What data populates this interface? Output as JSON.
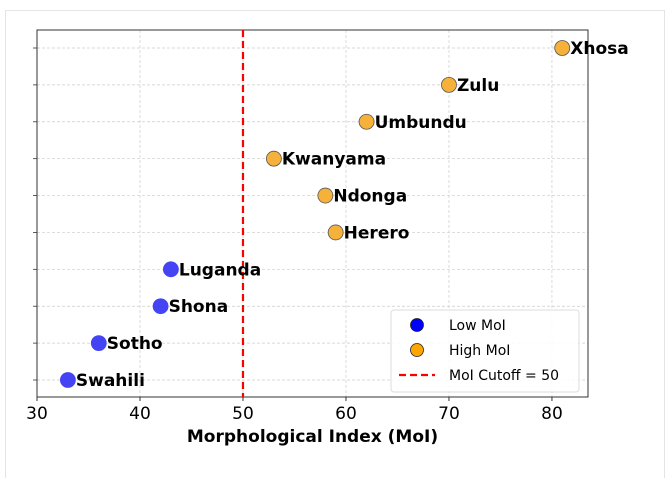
{
  "chart_data": {
    "type": "scatter",
    "title": "",
    "xlabel": "Morphological Index (MoI)",
    "ylabel": "",
    "xlim": [
      30,
      83.5
    ],
    "xticks": [
      30,
      40,
      50,
      60,
      70,
      80
    ],
    "grid": true,
    "legend_position": "lower-right",
    "points": [
      {
        "label": "Swahili",
        "x": 33,
        "group": "Low MoI"
      },
      {
        "label": "Sotho",
        "x": 36,
        "group": "Low MoI"
      },
      {
        "label": "Shona",
        "x": 42,
        "group": "Low MoI"
      },
      {
        "label": "Luganda",
        "x": 43,
        "group": "Low MoI"
      },
      {
        "label": "Herero",
        "x": 59,
        "group": "High MoI"
      },
      {
        "label": "Ndonga",
        "x": 58,
        "group": "High MoI"
      },
      {
        "label": "Kwanyama",
        "x": 53,
        "group": "High MoI"
      },
      {
        "label": "Umbundu",
        "x": 62,
        "group": "High MoI"
      },
      {
        "label": "Zulu",
        "x": 70,
        "group": "High MoI"
      },
      {
        "label": "Xhosa",
        "x": 81,
        "group": "High MoI"
      }
    ],
    "cutoff": {
      "value": 50,
      "label": "MoI Cutoff = 50",
      "color": "#ff0000"
    },
    "legend": [
      {
        "label": "Low MoI",
        "color": "#0000ff"
      },
      {
        "label": "High MoI",
        "color": "#ffa500"
      },
      {
        "label": "MoI Cutoff = 50",
        "color": "#ff0000"
      }
    ]
  }
}
